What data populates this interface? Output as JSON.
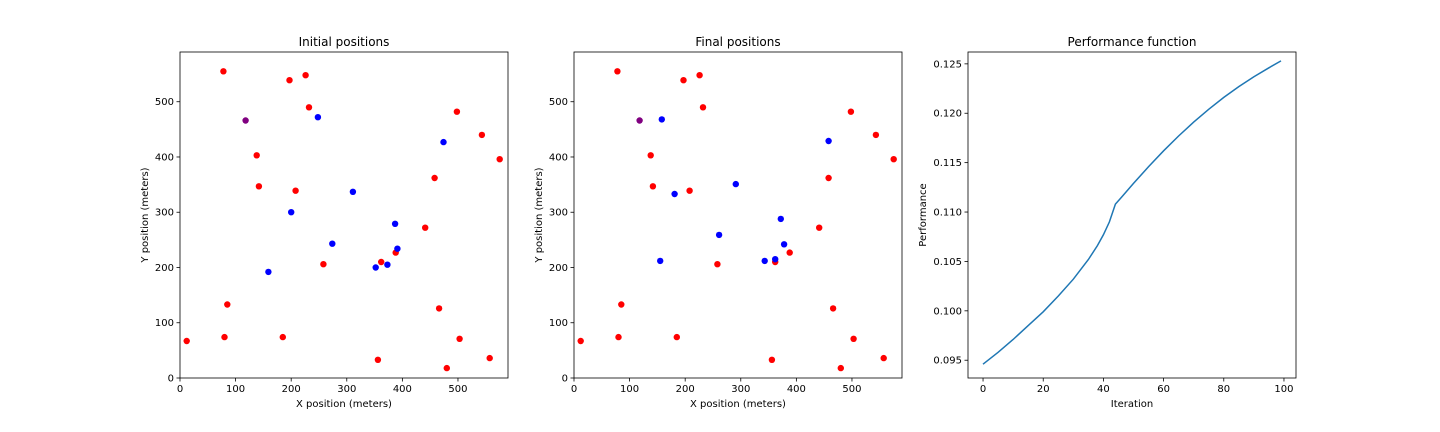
{
  "colors": {
    "red": "#ff0000",
    "blue": "#0000ff",
    "purple": "#800080",
    "line": "#1f77b4"
  },
  "chart_data": [
    {
      "type": "scatter",
      "title": "Initial positions",
      "xlabel": "X position (meters)",
      "ylabel": "Y position (meters)",
      "xlim": [
        0,
        590
      ],
      "ylim": [
        0,
        590
      ],
      "xticks": [
        0,
        100,
        200,
        300,
        400,
        500
      ],
      "yticks": [
        0,
        100,
        200,
        300,
        400,
        500
      ],
      "series": [
        {
          "color": "red",
          "points": [
            [
              78,
              555
            ],
            [
              197,
              539
            ],
            [
              226,
              548
            ],
            [
              232,
              490
            ],
            [
              498,
              482
            ],
            [
              543,
              440
            ],
            [
              575,
              396
            ],
            [
              138,
              403
            ],
            [
              142,
              347
            ],
            [
              208,
              339
            ],
            [
              458,
              362
            ],
            [
              441,
              272
            ],
            [
              258,
              206
            ],
            [
              362,
              210
            ],
            [
              388,
              227
            ],
            [
              85,
              133
            ],
            [
              80,
              74
            ],
            [
              185,
              74
            ],
            [
              12,
              67
            ],
            [
              466,
              126
            ],
            [
              503,
              71
            ],
            [
              557,
              36
            ],
            [
              356,
              33
            ],
            [
              480,
              18
            ]
          ]
        },
        {
          "color": "blue",
          "points": [
            [
              248,
              472
            ],
            [
              474,
              427
            ],
            [
              311,
              337
            ],
            [
              200,
              300
            ],
            [
              387,
              279
            ],
            [
              274,
              243
            ],
            [
              391,
              234
            ],
            [
              159,
              192
            ],
            [
              352,
              200
            ],
            [
              373,
              205
            ]
          ]
        },
        {
          "color": "purple",
          "points": [
            [
              118,
              466
            ]
          ]
        }
      ]
    },
    {
      "type": "scatter",
      "title": "Final positions",
      "xlabel": "X position (meters)",
      "ylabel": "Y position (meters)",
      "xlim": [
        0,
        590
      ],
      "ylim": [
        0,
        590
      ],
      "xticks": [
        0,
        100,
        200,
        300,
        400,
        500
      ],
      "yticks": [
        0,
        100,
        200,
        300,
        400,
        500
      ],
      "series": [
        {
          "color": "red",
          "points": [
            [
              78,
              555
            ],
            [
              197,
              539
            ],
            [
              226,
              548
            ],
            [
              232,
              490
            ],
            [
              498,
              482
            ],
            [
              543,
              440
            ],
            [
              575,
              396
            ],
            [
              138,
              403
            ],
            [
              142,
              347
            ],
            [
              208,
              339
            ],
            [
              458,
              362
            ],
            [
              441,
              272
            ],
            [
              258,
              206
            ],
            [
              362,
              210
            ],
            [
              388,
              227
            ],
            [
              85,
              133
            ],
            [
              80,
              74
            ],
            [
              185,
              74
            ],
            [
              12,
              67
            ],
            [
              466,
              126
            ],
            [
              503,
              71
            ],
            [
              557,
              36
            ],
            [
              356,
              33
            ],
            [
              480,
              18
            ]
          ]
        },
        {
          "color": "blue",
          "points": [
            [
              158,
              468
            ],
            [
              458,
              429
            ],
            [
              181,
              333
            ],
            [
              291,
              351
            ],
            [
              372,
              288
            ],
            [
              378,
              242
            ],
            [
              261,
              259
            ],
            [
              155,
              212
            ],
            [
              343,
              212
            ],
            [
              362,
              215
            ]
          ]
        },
        {
          "color": "purple",
          "points": [
            [
              118,
              466
            ]
          ]
        }
      ]
    },
    {
      "type": "line",
      "title": "Performance function",
      "xlabel": "Iteration",
      "ylabel": "Performance",
      "xlim": [
        -5,
        104
      ],
      "ylim": [
        0.0932,
        0.1262
      ],
      "xticks": [
        0,
        20,
        40,
        60,
        80,
        100
      ],
      "yticks": [
        0.095,
        0.1,
        0.105,
        0.11,
        0.115,
        0.12,
        0.125
      ],
      "ytick_labels": [
        "0.095",
        "0.100",
        "0.105",
        "0.110",
        "0.115",
        "0.120",
        "0.125"
      ],
      "series": [
        {
          "color": "line",
          "x": [
            0,
            5,
            10,
            15,
            20,
            25,
            30,
            35,
            38,
            40,
            42,
            44,
            46,
            50,
            55,
            60,
            65,
            70,
            75,
            80,
            85,
            90,
            95,
            99
          ],
          "y": [
            0.0946,
            0.0958,
            0.0971,
            0.0985,
            0.0999,
            0.1015,
            0.1032,
            0.1052,
            0.1066,
            0.1077,
            0.109,
            0.1108,
            0.1115,
            0.1129,
            0.1146,
            0.1162,
            0.1177,
            0.1191,
            0.1204,
            0.1216,
            0.1227,
            0.1237,
            0.1246,
            0.1253
          ]
        }
      ]
    }
  ]
}
